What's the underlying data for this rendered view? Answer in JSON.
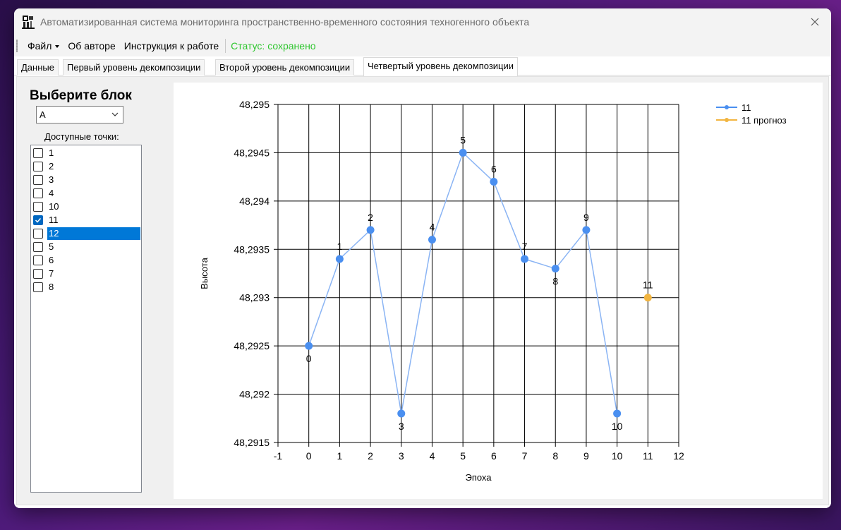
{
  "window": {
    "title": "Автоматизированная система мониторинга пространственно-временного состояния техногенного объекта",
    "close_icon": "close-icon",
    "app_icon": "app-icon"
  },
  "menu": {
    "file": "Файл",
    "about": "Об авторе",
    "instructions": "Инструкция к работе",
    "status": "Статус: сохранено"
  },
  "tabs": [
    {
      "label": "Данные"
    },
    {
      "label": "Первый уровень декомпозиции"
    },
    {
      "label": "Второй уровень декомпозиции"
    },
    {
      "label": "Четвертый уровень декомпозиции",
      "active": true
    }
  ],
  "panel": {
    "block_label": "Выберите блок",
    "block_value": "A",
    "points_label": "Доступные точки:",
    "points": [
      {
        "label": "1",
        "checked": false,
        "selected": false
      },
      {
        "label": "2",
        "checked": false,
        "selected": false
      },
      {
        "label": "3",
        "checked": false,
        "selected": false
      },
      {
        "label": "4",
        "checked": false,
        "selected": false
      },
      {
        "label": "10",
        "checked": false,
        "selected": false
      },
      {
        "label": "11",
        "checked": true,
        "selected": false
      },
      {
        "label": "12",
        "checked": false,
        "selected": true
      },
      {
        "label": "5",
        "checked": false,
        "selected": false
      },
      {
        "label": "6",
        "checked": false,
        "selected": false
      },
      {
        "label": "7",
        "checked": false,
        "selected": false
      },
      {
        "label": "8",
        "checked": false,
        "selected": false
      }
    ]
  },
  "chart_data": {
    "type": "line",
    "title": "",
    "xlabel": "Эпоха",
    "ylabel": "Высота",
    "xlim": [
      -1,
      12
    ],
    "ylim": [
      48.2915,
      48.295
    ],
    "x_ticks": [
      "-1",
      "0",
      "1",
      "2",
      "3",
      "4",
      "5",
      "6",
      "7",
      "8",
      "9",
      "10",
      "11",
      "12"
    ],
    "y_ticks": [
      "48,295",
      "48,2945",
      "48,294",
      "48,2935",
      "48,293",
      "48,2925",
      "48,292",
      "48,2915"
    ],
    "y_tick_values": [
      48.295,
      48.2945,
      48.294,
      48.2935,
      48.293,
      48.2925,
      48.292,
      48.2915
    ],
    "grid": true,
    "legend_position": "top-right",
    "series": [
      {
        "name": "11",
        "color": "#4a8ff0",
        "line_color": "#8ab4f4",
        "x": [
          0,
          1,
          2,
          3,
          4,
          5,
          6,
          7,
          8,
          9,
          10
        ],
        "y": [
          48.2925,
          48.2934,
          48.2937,
          48.2918,
          48.2936,
          48.2945,
          48.2942,
          48.2934,
          48.2933,
          48.2937,
          48.2918
        ],
        "labels": [
          "0",
          "1",
          "2",
          "3",
          "4",
          "5",
          "6",
          "7",
          "8",
          "9",
          "10"
        ],
        "label_pos": [
          "below",
          "above",
          "above",
          "below",
          "above",
          "above",
          "above",
          "above",
          "below",
          "above",
          "below"
        ]
      },
      {
        "name": "11 прогноз",
        "color": "#f2b540",
        "line_color": "#f2b540",
        "x": [
          11
        ],
        "y": [
          48.293
        ],
        "labels": [
          "11"
        ],
        "label_pos": [
          "above"
        ]
      }
    ]
  }
}
